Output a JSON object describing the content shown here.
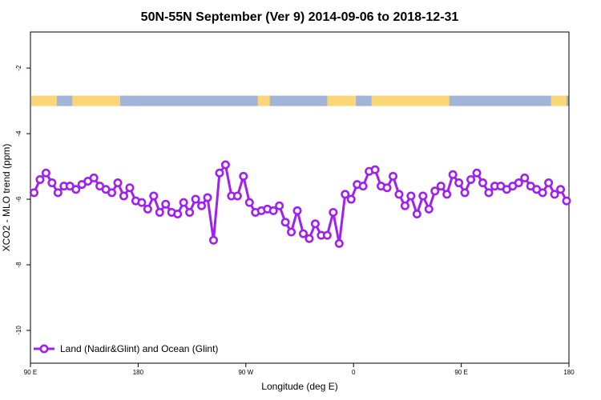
{
  "chart_data": {
    "type": "line",
    "title": "50N-55N September (Ver 9)   2014-09-06 to 2018-12-31",
    "xlabel": "Longitude (deg E)",
    "ylabel": "XCO2 - MLO trend (ppm)",
    "xticks": [
      {
        "value": 90,
        "label": "90 E"
      },
      {
        "value": 180,
        "label": "180"
      },
      {
        "value": 270,
        "label": "90 W"
      },
      {
        "value": 360,
        "label": "0"
      },
      {
        "value": 450,
        "label": "90 E"
      },
      {
        "value": 540,
        "label": "180"
      }
    ],
    "yticks": [
      -2,
      -4,
      -6,
      -8,
      -10
    ],
    "xlim": [
      90,
      540
    ],
    "ylim": [
      -11,
      -0.9
    ],
    "legend": {
      "position": "bottom-left",
      "entries": [
        "Land (Nadir&Glint) and Ocean (Glint)"
      ]
    },
    "land_ocean_strip": {
      "y": -3.0,
      "land_color": "#fbd679",
      "ocean_color": "#a2b5d8",
      "ocean_segmentsdeg": []
    },
    "series": [
      {
        "name": "Land (Nadir&Glint) and Ocean (Glint)",
        "color": "#a020f0",
        "x": [
          93,
          98,
          103,
          108,
          113,
          118,
          123,
          128,
          133,
          138,
          143,
          148,
          153,
          158,
          163,
          168,
          173,
          178,
          183,
          188,
          193,
          198,
          203,
          208,
          213,
          218,
          223,
          228,
          233,
          238,
          243,
          248,
          253,
          258,
          263,
          268,
          273,
          278,
          283,
          288,
          293,
          298,
          303,
          308,
          313,
          318,
          323,
          328,
          333,
          338,
          343,
          348,
          353,
          358,
          363,
          368,
          373,
          378,
          383,
          388,
          393,
          398,
          403,
          408,
          413,
          418,
          423,
          428,
          433,
          438,
          443,
          448,
          453,
          458,
          463,
          468,
          473,
          478,
          483,
          488,
          493,
          498,
          503,
          508,
          513,
          518,
          523,
          528,
          533,
          538
        ],
        "values": [
          -5.8,
          -5.4,
          -5.2,
          -5.5,
          -5.8,
          -5.6,
          -5.6,
          -5.7,
          -5.55,
          -5.45,
          -5.35,
          -5.6,
          -5.7,
          -5.8,
          -5.5,
          -5.9,
          -5.65,
          -6.05,
          -6.1,
          -6.3,
          -5.9,
          -6.4,
          -6.15,
          -6.4,
          -6.45,
          -6.1,
          -6.4,
          -6.0,
          -6.2,
          -5.95,
          -7.25,
          -5.2,
          -4.95,
          -5.9,
          -5.9,
          -5.3,
          -6.1,
          -6.4,
          -6.35,
          -6.3,
          -6.35,
          -6.2,
          -6.7,
          -7.0,
          -6.35,
          -7.05,
          -7.2,
          -6.75,
          -7.1,
          -7.1,
          -6.4,
          -7.35,
          -5.85,
          -6.0,
          -5.55,
          -5.6,
          -5.15,
          -5.1,
          -5.6,
          -5.65,
          -5.3,
          -5.85,
          -6.2,
          -5.9,
          -6.45,
          -5.9,
          -6.3,
          -5.75,
          -5.6,
          -5.85,
          -5.25,
          -5.5,
          -5.8,
          -5.4,
          -5.2,
          -5.5,
          -5.8,
          -5.6,
          -5.6,
          -5.7,
          -5.6,
          -5.5,
          -5.35,
          -5.6,
          -5.7,
          -5.8,
          -5.5,
          -5.85,
          -5.7,
          -6.05
        ]
      }
    ]
  }
}
